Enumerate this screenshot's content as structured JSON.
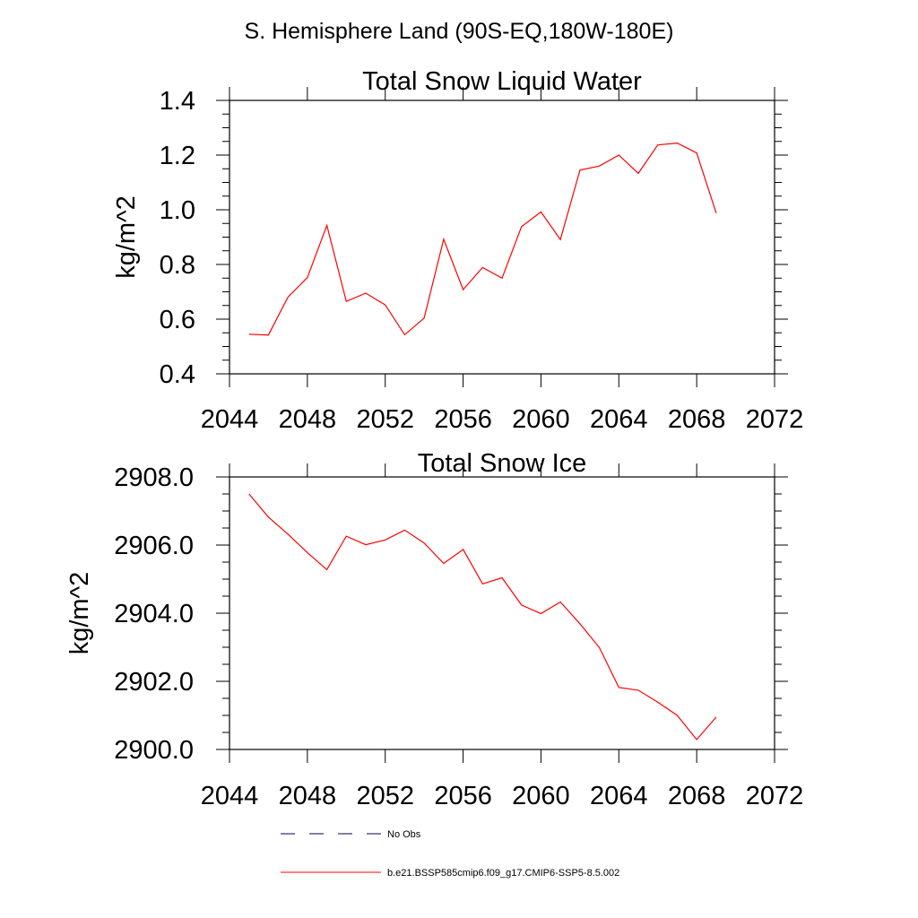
{
  "figure_title": "S. Hemisphere Land (90S-EQ,180W-180E)",
  "chart_data": [
    {
      "type": "line",
      "title": "Total Snow Liquid Water",
      "xlabel": "",
      "ylabel": "kg/m^2",
      "xlim": [
        2044,
        2072
      ],
      "ylim": [
        0.4,
        1.4
      ],
      "xticks": [
        "2044",
        "2048",
        "2052",
        "2056",
        "2060",
        "2064",
        "2068",
        "2072"
      ],
      "yticks": [
        "0.4",
        "0.6",
        "0.8",
        "1.0",
        "1.2",
        "1.4"
      ],
      "grid": false,
      "series": [
        {
          "name": "b.e21.BSSP585cmip6.f09_g17.CMIP6-SSP5-8.5.002",
          "color": "#ff0000",
          "x": [
            2045,
            2046,
            2047,
            2048,
            2049,
            2050,
            2051,
            2052,
            2053,
            2054,
            2055,
            2056,
            2057,
            2058,
            2059,
            2060,
            2061,
            2062,
            2063,
            2064,
            2065,
            2066,
            2067,
            2068,
            2069
          ],
          "values": [
            0.545,
            0.542,
            0.68,
            0.752,
            0.943,
            0.665,
            0.695,
            0.652,
            0.543,
            0.604,
            0.892,
            0.708,
            0.789,
            0.75,
            0.938,
            0.992,
            0.891,
            1.145,
            1.16,
            1.2,
            1.133,
            1.237,
            1.244,
            1.208,
            0.988
          ]
        }
      ]
    },
    {
      "type": "line",
      "title": "Total Snow Ice",
      "xlabel": "",
      "ylabel": "kg/m^2",
      "xlim": [
        2044,
        2072
      ],
      "ylim": [
        2900.0,
        2908.0
      ],
      "xticks": [
        "2044",
        "2048",
        "2052",
        "2056",
        "2060",
        "2064",
        "2068",
        "2072"
      ],
      "yticks": [
        "2900.0",
        "2902.0",
        "2904.0",
        "2906.0",
        "2908.0"
      ],
      "grid": false,
      "series": [
        {
          "name": "b.e21.BSSP585cmip6.f09_g17.CMIP6-SSP5-8.5.002",
          "color": "#ff0000",
          "x": [
            2045,
            2046,
            2047,
            2048,
            2049,
            2050,
            2051,
            2052,
            2053,
            2054,
            2055,
            2056,
            2057,
            2058,
            2059,
            2060,
            2061,
            2062,
            2063,
            2064,
            2065,
            2066,
            2067,
            2068,
            2069
          ],
          "values": [
            2907.5,
            2906.82,
            2906.32,
            2905.78,
            2905.28,
            2906.26,
            2906.01,
            2906.15,
            2906.44,
            2906.06,
            2905.46,
            2905.87,
            2904.86,
            2905.04,
            2904.24,
            2903.99,
            2904.33,
            2903.69,
            2902.99,
            2901.82,
            2901.74,
            2901.39,
            2901.0,
            2900.29,
            2900.95
          ]
        }
      ]
    }
  ],
  "legend": {
    "placement": "bottom",
    "items": [
      {
        "label": "No Obs",
        "color": "#00004d",
        "style": "dashed"
      },
      {
        "label": "b.e21.BSSP585cmip6.f09_g17.CMIP6-SSP5-8.5.002",
        "color": "#ff0000",
        "style": "solid"
      }
    ]
  }
}
